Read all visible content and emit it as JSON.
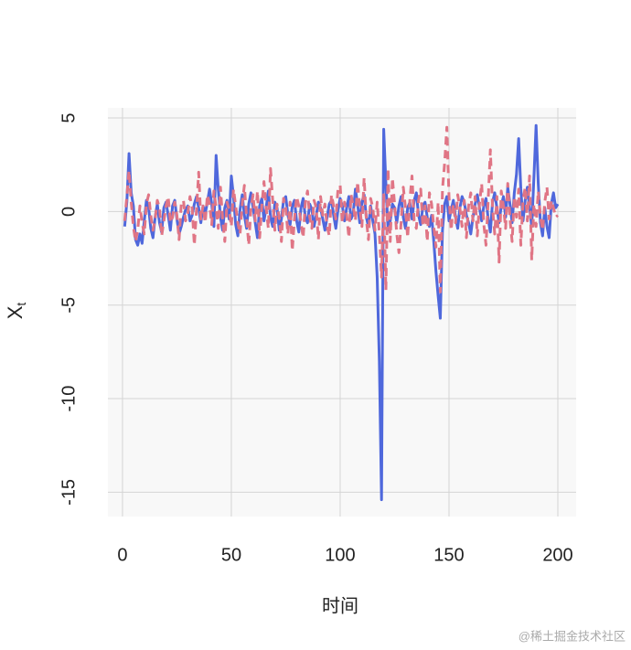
{
  "chart_data": {
    "type": "line",
    "ylabel": {
      "main": "X",
      "sub": "t"
    },
    "xlabel": "时间",
    "watermark": "@稀土掘金技术社区",
    "xlim": [
      -6.7,
      208.4
    ],
    "ylim": [
      -16.3,
      5.54
    ],
    "xticks": [
      0,
      50,
      100,
      150,
      200
    ],
    "yticks": [
      -15,
      -10,
      -5,
      0,
      5
    ],
    "grid": true,
    "x": [
      1,
      2,
      3,
      4,
      5,
      6,
      7,
      8,
      9,
      10,
      11,
      12,
      13,
      14,
      15,
      16,
      17,
      18,
      19,
      20,
      21,
      22,
      23,
      24,
      25,
      26,
      27,
      28,
      29,
      30,
      31,
      32,
      33,
      34,
      35,
      36,
      37,
      38,
      39,
      40,
      41,
      42,
      43,
      44,
      45,
      46,
      47,
      48,
      49,
      50,
      51,
      52,
      53,
      54,
      55,
      56,
      57,
      58,
      59,
      60,
      61,
      62,
      63,
      64,
      65,
      66,
      67,
      68,
      69,
      70,
      71,
      72,
      73,
      74,
      75,
      76,
      77,
      78,
      79,
      80,
      81,
      82,
      83,
      84,
      85,
      86,
      87,
      88,
      89,
      90,
      91,
      92,
      93,
      94,
      95,
      96,
      97,
      98,
      99,
      100,
      101,
      102,
      103,
      104,
      105,
      106,
      107,
      108,
      109,
      110,
      111,
      112,
      113,
      114,
      115,
      116,
      117,
      118,
      119,
      120,
      121,
      122,
      123,
      124,
      125,
      126,
      127,
      128,
      129,
      130,
      131,
      132,
      133,
      134,
      135,
      136,
      137,
      138,
      139,
      140,
      141,
      142,
      143,
      144,
      145,
      146,
      147,
      148,
      149,
      150,
      151,
      152,
      153,
      154,
      155,
      156,
      157,
      158,
      159,
      160,
      161,
      162,
      163,
      164,
      165,
      166,
      167,
      168,
      169,
      170,
      171,
      172,
      173,
      174,
      175,
      176,
      177,
      178,
      179,
      180,
      181,
      182,
      183,
      184,
      185,
      186,
      187,
      188,
      189,
      190,
      191,
      192,
      193,
      194,
      195,
      196,
      197,
      198,
      199,
      200
    ],
    "series": [
      {
        "color": "#4f68dc",
        "linestyle": "solid",
        "values": [
          -0.8,
          0.5,
          3.1,
          1.0,
          0.3,
          -1.5,
          -1.8,
          -1.2,
          -1.7,
          -0.5,
          0.6,
          0.2,
          -0.9,
          -1.4,
          -0.3,
          0.4,
          -0.6,
          -1.1,
          0.2,
          0.5,
          -0.2,
          -1.0,
          0.3,
          0.6,
          -0.4,
          -1.2,
          -0.8,
          -0.3,
          0.1,
          0.3,
          -0.5,
          -0.2,
          0.4,
          0.8,
          0.2,
          -0.6,
          0.3,
          -0.1,
          0.5,
          1.2,
          0.4,
          -0.8,
          3.0,
          1.2,
          -0.3,
          -1.0,
          0.2,
          0.6,
          -0.4,
          1.9,
          0.8,
          -0.7,
          -1.3,
          0.1,
          0.9,
          -0.2,
          -0.9,
          0.4,
          1.0,
          0.2,
          -0.6,
          -1.4,
          0.3,
          0.7,
          -0.5,
          0.2,
          1.1,
          -0.3,
          -0.8,
          0.5,
          0.2,
          -1.0,
          -0.4,
          0.6,
          0.8,
          -0.2,
          -0.7,
          0.3,
          0.6,
          -0.5,
          -1.1,
          0.2,
          0.7,
          -0.3,
          -0.6,
          0.4,
          0.1,
          -0.8,
          -0.2,
          0.5,
          0.2,
          -0.4,
          -1.0,
          -0.3,
          0.4,
          0.6,
          -0.2,
          -0.9,
          0.1,
          0.7,
          0.3,
          -0.5,
          0.2,
          0.8,
          -0.4,
          -0.1,
          1.2,
          0.4,
          -0.6,
          0.5,
          0.9,
          -0.3,
          -0.8,
          0.3,
          -0.5,
          -1.2,
          -3.5,
          -8.0,
          -15.4,
          4.4,
          1.5,
          -1.0,
          -0.5,
          0.4,
          0.2,
          -0.6,
          0.3,
          0.8,
          -0.3,
          -0.9,
          0.2,
          0.5,
          -0.4,
          0.6,
          1.0,
          -0.2,
          -0.7,
          0.3,
          0.5,
          -0.3,
          -0.8,
          -0.2,
          -1.6,
          -3.2,
          -4.5,
          -5.7,
          -1.0,
          0.4,
          0.8,
          -0.5,
          0.1,
          0.6,
          -0.3,
          -0.9,
          0.2,
          0.8,
          0.5,
          -0.2,
          -0.6,
          -1.2,
          -0.3,
          0.4,
          0.9,
          0.2,
          -0.5,
          0.3,
          0.7,
          -0.4,
          -1.1,
          0.5,
          1.0,
          0.2,
          -0.6,
          0.3,
          0.8,
          -0.3,
          1.3,
          0.4,
          -0.6,
          1.0,
          2.0,
          3.9,
          1.2,
          -0.5,
          0.6,
          1.3,
          0.2,
          -0.8,
          1.8,
          4.6,
          1.5,
          -0.6,
          -1.3,
          0.2,
          -0.8,
          -1.4,
          0.4,
          1.0,
          0.2,
          0.4
        ]
      },
      {
        "color": "#e07585",
        "linestyle": "dashed",
        "values": [
          -0.5,
          0.8,
          2.2,
          0.5,
          -0.8,
          -1.6,
          -1.0,
          0.3,
          -0.6,
          -1.2,
          0.4,
          0.9,
          -0.2,
          -1.0,
          -0.4,
          0.6,
          0.2,
          -1.3,
          -0.5,
          0.3,
          0.8,
          -0.6,
          -0.3,
          0.5,
          -0.2,
          -1.5,
          0.4,
          0.6,
          -0.5,
          -0.1,
          0.8,
          0.2,
          -1.8,
          0.1,
          2.1,
          -0.4,
          0.3,
          -0.6,
          0.9,
          0.4,
          -0.7,
          1.1,
          0.2,
          -0.9,
          1.3,
          -0.4,
          -1.6,
          0.5,
          0.1,
          -0.8,
          1.2,
          0.3,
          -0.6,
          -1.2,
          0.4,
          1.4,
          -0.3,
          -1.8,
          0.2,
          0.9,
          -0.5,
          1.1,
          -1.4,
          0.3,
          1.6,
          0.2,
          -0.9,
          2.3,
          0.6,
          -1.0,
          0.4,
          -0.3,
          -1.6,
          0.7,
          0.2,
          -1.2,
          0.5,
          -2.1,
          -0.4,
          0.8,
          0.3,
          -0.6,
          -1.4,
          0.5,
          1.1,
          -0.3,
          -0.9,
          0.6,
          0.2,
          -1.5,
          0.8,
          -0.2,
          0.4,
          -0.8,
          -1.3,
          0.9,
          0.3,
          -0.4,
          1.2,
          1.4,
          -0.6,
          0.5,
          -0.2,
          -1.4,
          0.9,
          0.3,
          -0.5,
          1.6,
          0.2,
          -0.8,
          1.8,
          -0.4,
          -1.5,
          0.7,
          0.2,
          -1.0,
          0.5,
          -1.2,
          -3.5,
          0.9,
          -4.2,
          2.3,
          -1.6,
          1.8,
          0.4,
          -1.2,
          -2.2,
          -0.6,
          1.3,
          0.2,
          -1.4,
          0.6,
          1.9,
          -0.5,
          -0.9,
          0.6,
          1.2,
          -0.8,
          0.3,
          -1.6,
          1.0,
          0.4,
          -0.8,
          -1.9,
          0.5,
          -4.3,
          1.2,
          2.6,
          4.5,
          0.8,
          -1.0,
          0.4,
          -0.6,
          0.9,
          0.2,
          -0.8,
          0.6,
          -1.4,
          0.3,
          1.0,
          -0.5,
          0.8,
          -1.3,
          0.4,
          1.5,
          -0.7,
          -1.8,
          0.6,
          3.3,
          0.2,
          -1.2,
          0.8,
          -2.7,
          1.1,
          0.3,
          -0.9,
          1.5,
          -0.4,
          -1.6,
          0.8,
          -0.3,
          1.2,
          -1.8,
          0.6,
          1.3,
          -0.5,
          1.9,
          -2.6,
          0.4,
          -0.8,
          1.1,
          -0.3,
          -1.0,
          0.5,
          1.3,
          -0.4,
          0.6,
          0.2,
          -0.3,
          -0.2
        ]
      }
    ]
  }
}
